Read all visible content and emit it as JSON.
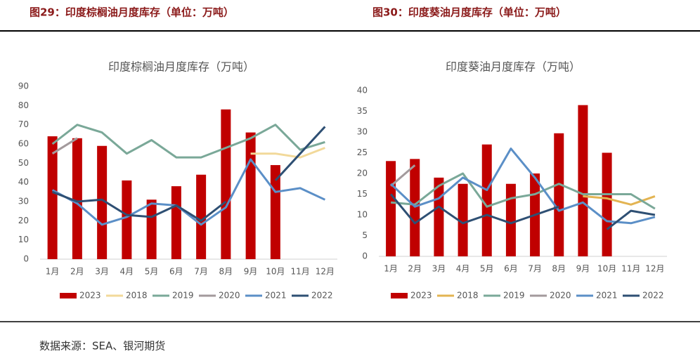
{
  "chart_data": [
    {
      "type": "combo",
      "figure_title": "图29：印度棕榈油月度库存（单位：万吨）",
      "title": "印度棕榈油月度库存（万吨）",
      "categories": [
        "1月",
        "2月",
        "3月",
        "4月",
        "5月",
        "6月",
        "7月",
        "8月",
        "9月",
        "10月",
        "11月",
        "12月"
      ],
      "ylim": [
        0,
        90
      ],
      "yticks": [
        0,
        10,
        20,
        30,
        40,
        50,
        60,
        70,
        80,
        90
      ],
      "series": [
        {
          "name": "2023",
          "type": "bar",
          "color": "#c00000",
          "values": [
            64,
            63,
            59,
            41,
            31,
            38,
            44,
            78,
            66,
            49,
            null,
            null
          ]
        },
        {
          "name": "2018",
          "type": "line",
          "color": "#f2d99a",
          "values": [
            null,
            null,
            null,
            null,
            null,
            null,
            null,
            null,
            55,
            55,
            53,
            58
          ]
        },
        {
          "name": "2019",
          "type": "line",
          "color": "#7aa898",
          "values": [
            60,
            70,
            66,
            55,
            62,
            53,
            53,
            58,
            63,
            70,
            57,
            61
          ]
        },
        {
          "name": "2020",
          "type": "line",
          "color": "#a39a9c",
          "values": [
            55,
            63,
            null,
            null,
            null,
            null,
            null,
            null,
            null,
            null,
            null,
            null
          ]
        },
        {
          "name": "2021",
          "type": "line",
          "color": "#5b8fc7",
          "values": [
            36,
            29,
            18,
            22,
            29,
            28,
            18,
            27,
            52,
            35,
            37,
            31
          ]
        },
        {
          "name": "2022",
          "type": "line",
          "color": "#2e4f73",
          "values": [
            35,
            30,
            31,
            23,
            22,
            28,
            20,
            30,
            null,
            41,
            55,
            69
          ]
        }
      ]
    },
    {
      "type": "combo",
      "figure_title": "图30：印度葵油月度库存（单位：万吨）",
      "title": "印度葵油月度库存（万吨）",
      "categories": [
        "1月",
        "2月",
        "3月",
        "4月",
        "5月",
        "6月",
        "7月",
        "8月",
        "9月",
        "10月",
        "11月",
        "12月"
      ],
      "ylim": [
        0,
        40
      ],
      "yticks": [
        0,
        5,
        10,
        15,
        20,
        25,
        30,
        35,
        40
      ],
      "series": [
        {
          "name": "2023",
          "type": "bar",
          "color": "#c00000",
          "values": [
            23,
            23.5,
            19,
            17.5,
            27,
            17.5,
            20,
            29.7,
            36.5,
            25,
            null,
            null
          ]
        },
        {
          "name": "2018",
          "type": "line",
          "color": "#e3b452",
          "values": [
            null,
            null,
            null,
            null,
            null,
            null,
            null,
            null,
            14.5,
            14,
            12.5,
            14.5
          ]
        },
        {
          "name": "2019",
          "type": "line",
          "color": "#7aa898",
          "values": [
            13,
            12.5,
            17,
            20,
            12,
            14,
            15,
            17.5,
            15,
            15,
            15,
            11.5
          ]
        },
        {
          "name": "2020",
          "type": "line",
          "color": "#a39a9c",
          "values": [
            17,
            22,
            null,
            null,
            null,
            null,
            null,
            null,
            null,
            null,
            null,
            null
          ]
        },
        {
          "name": "2021",
          "type": "line",
          "color": "#5b8fc7",
          "values": [
            17.5,
            12,
            14,
            19,
            16,
            26,
            19,
            11,
            13,
            8.5,
            8,
            9.5
          ]
        },
        {
          "name": "2022",
          "type": "line",
          "color": "#2e4f73",
          "values": [
            15,
            8,
            12,
            8,
            10,
            8,
            10,
            12,
            null,
            6.5,
            11,
            10
          ]
        }
      ]
    }
  ],
  "source": "数据来源：SEA、银河期货"
}
